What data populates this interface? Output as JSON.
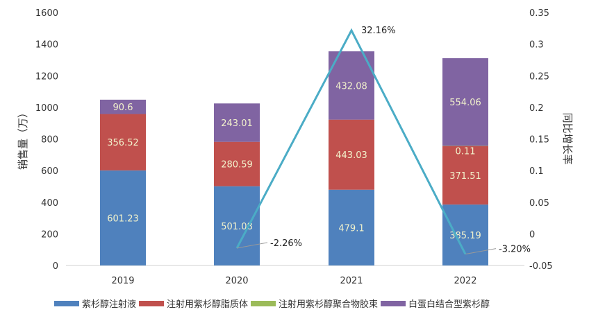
{
  "chart_data": {
    "type": "bar",
    "stacked": true,
    "categories": [
      "2019",
      "2020",
      "2021",
      "2022"
    ],
    "series": [
      {
        "name": "紫杉醇注射液",
        "color": "#4f81bd",
        "values": [
          601.23,
          501.08,
          479.1,
          385.19
        ],
        "labels": [
          "601.23",
          "501.08",
          "479.1",
          "385.19"
        ]
      },
      {
        "name": "注射用紫杉醇脂质体",
        "color": "#c0504d",
        "values": [
          356.52,
          280.59,
          443.03,
          371.51
        ],
        "labels": [
          "356.52",
          "280.59",
          "443.03",
          "371.51"
        ]
      },
      {
        "name": "注射用紫杉醇聚合物胶束",
        "color": "#9bbb59",
        "values": [
          null,
          null,
          null,
          0.11
        ],
        "labels": [
          "",
          "",
          "",
          "0.11"
        ]
      },
      {
        "name": "白蛋白结合型紫杉醇",
        "color": "#8064a2",
        "values": [
          90.6,
          243.01,
          432.08,
          554.06
        ],
        "labels": [
          "90.6",
          "243.01",
          "432.08",
          "554.06"
        ]
      }
    ],
    "line": {
      "name": "同比增长率",
      "color": "#4bacc6",
      "values": [
        null,
        -0.0226,
        0.3216,
        -0.032
      ],
      "labels": [
        "",
        "-2.26%",
        "32.16%",
        "-3.20%"
      ]
    },
    "ylabel": "销售量（万）",
    "y2label": "同比增长率",
    "ylim": [
      0,
      1600
    ],
    "y2lim": [
      -0.05,
      0.35
    ],
    "yticks": [
      "0",
      "200",
      "400",
      "600",
      "800",
      "1000",
      "1200",
      "1400",
      "1600"
    ],
    "y2ticks": [
      "-0.05",
      "0",
      "0.05",
      "0.1",
      "0.15",
      "0.2",
      "0.25",
      "0.3",
      "0.35"
    ],
    "legend": "bottom",
    "grid": false
  }
}
